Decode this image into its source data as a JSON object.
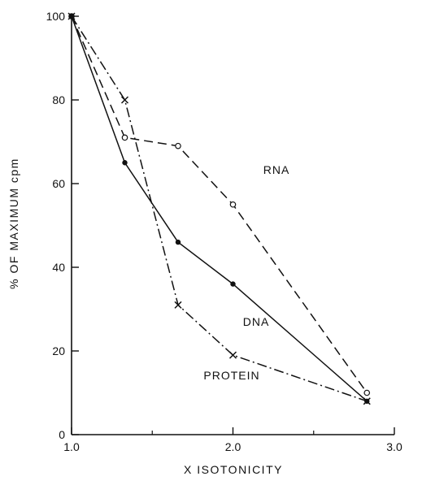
{
  "chart_data": {
    "type": "line",
    "xlabel": "X ISOTONICITY",
    "ylabel": "% OF MAXIMUM cpm",
    "xlim": [
      1.0,
      3.0
    ],
    "ylim": [
      0,
      100
    ],
    "x_ticks": [
      "1.0",
      "2.0",
      "3.0"
    ],
    "y_ticks": [
      "0",
      "20",
      "40",
      "60",
      "80",
      "100"
    ],
    "grid": false,
    "legend": "none",
    "series": [
      {
        "name": "RNA",
        "line_style": "dashed",
        "marker": "open-circle",
        "x": [
          1.0,
          1.33,
          1.66,
          2.0,
          2.83
        ],
        "y": [
          100,
          71,
          69,
          55,
          10
        ]
      },
      {
        "name": "DNA",
        "line_style": "solid",
        "marker": "filled-circle",
        "x": [
          1.0,
          1.33,
          1.66,
          2.0,
          2.83
        ],
        "y": [
          100,
          65,
          46,
          36,
          8
        ]
      },
      {
        "name": "PROTEIN",
        "line_style": "dash-dot",
        "marker": "cross",
        "x": [
          1.0,
          1.33,
          1.66,
          2.0,
          2.83
        ],
        "y": [
          100,
          80,
          31,
          19,
          8
        ]
      }
    ]
  }
}
